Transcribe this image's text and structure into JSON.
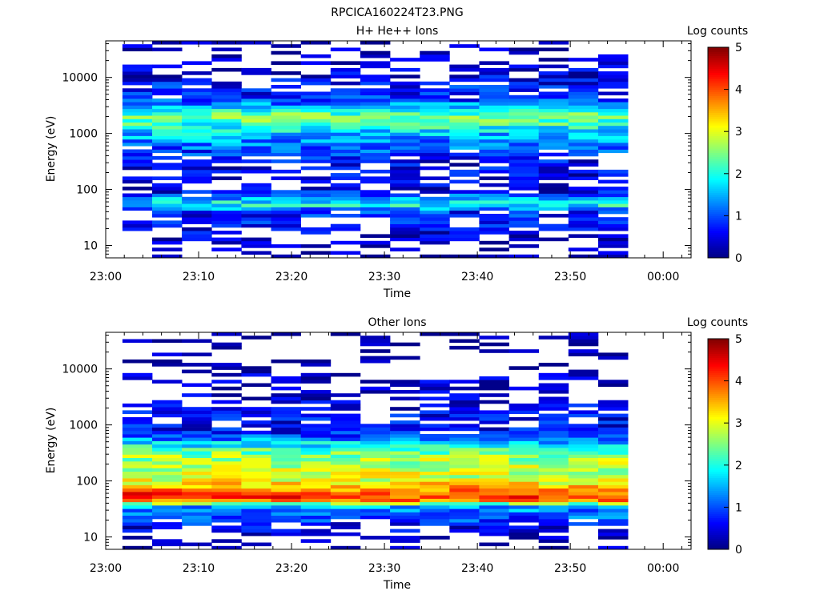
{
  "figure": {
    "title": "RPCICA160224T23.PNG"
  },
  "chart_data": [
    {
      "type": "heatmap",
      "title": "H+ He++ Ions",
      "xlabel": "Time",
      "ylabel": "Energy (eV)",
      "x_ticks": [
        "23:00",
        "23:10",
        "23:20",
        "23:30",
        "23:40",
        "23:50",
        "00:00"
      ],
      "xlim_minutes": [
        0,
        63
      ],
      "y_scale": "log",
      "ylim": [
        6,
        45000
      ],
      "y_ticks": [
        10,
        100,
        1000,
        10000
      ],
      "colorbar": {
        "label": "Log counts",
        "range": [
          0,
          5
        ],
        "ticks": [
          0,
          1,
          2,
          3,
          4,
          5
        ]
      },
      "columns": 17,
      "data_start_minute": 1.8,
      "data_end_minute": 56.2,
      "summary_log_counts": [
        {
          "energy": 10,
          "value": 0.1
        },
        {
          "energy": 40,
          "value": 0.8
        },
        {
          "energy": 55,
          "value": 2.1
        },
        {
          "energy": 100,
          "value": 0.3
        },
        {
          "energy": 300,
          "value": 0.5
        },
        {
          "energy": 1000,
          "value": 1.6
        },
        {
          "energy": 2000,
          "value": 2.5
        },
        {
          "energy": 4000,
          "value": 0.9
        },
        {
          "energy": 20000,
          "value": 0.1
        }
      ]
    },
    {
      "type": "heatmap",
      "title": "Other Ions",
      "xlabel": "Time",
      "ylabel": "Energy (eV)",
      "x_ticks": [
        "23:00",
        "23:10",
        "23:20",
        "23:30",
        "23:40",
        "23:50",
        "00:00"
      ],
      "xlim_minutes": [
        0,
        63
      ],
      "y_scale": "log",
      "ylim": [
        6,
        45000
      ],
      "y_ticks": [
        10,
        100,
        1000,
        10000
      ],
      "colorbar": {
        "label": "Log counts",
        "range": [
          0,
          5
        ],
        "ticks": [
          0,
          1,
          2,
          3,
          4,
          5
        ]
      },
      "columns": 17,
      "data_start_minute": 1.8,
      "data_end_minute": 56.2,
      "summary_log_counts": [
        {
          "energy": 10,
          "value": 0.1
        },
        {
          "energy": 35,
          "value": 1.5
        },
        {
          "energy": 45,
          "value": 3.8
        },
        {
          "energy": 55,
          "value": 4.2
        },
        {
          "energy": 100,
          "value": 3.0
        },
        {
          "energy": 300,
          "value": 2.6
        },
        {
          "energy": 800,
          "value": 0.6
        },
        {
          "energy": 2300,
          "value": 0.4
        },
        {
          "energy": 4000,
          "value": 0.2
        }
      ]
    }
  ]
}
